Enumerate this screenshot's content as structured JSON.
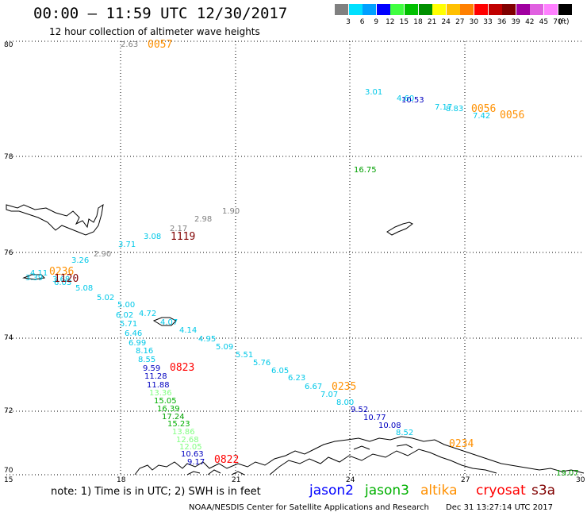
{
  "header": {
    "title": "00:00 – 11:59 UTC 12/30/2017",
    "subtitle": "12 hour collection of altimeter wave heights"
  },
  "legend": {
    "unit": "(ft)",
    "colors": [
      "#808080",
      "#00e0ff",
      "#00a0ff",
      "#0000ff",
      "#40ff40",
      "#00c000",
      "#009000",
      "#ffff00",
      "#ffc000",
      "#ff8000",
      "#ff0000",
      "#c00000",
      "#800000",
      "#a000a0",
      "#e060e0",
      "#ff80ff",
      "#000000"
    ],
    "labels": [
      "3",
      "6",
      "9",
      "12",
      "15",
      "18",
      "21",
      "24",
      "27",
      "30",
      "33",
      "36",
      "39",
      "42",
      "45",
      "70"
    ]
  },
  "axes": {
    "lat_labels": [
      "80",
      "78",
      "76",
      "74",
      "72",
      "70"
    ],
    "lon_labels": [
      "15",
      "18",
      "21",
      "24",
      "27",
      "30"
    ]
  },
  "wave_heights": [
    {
      "text": "2.63",
      "color": "#808080"
    },
    {
      "text": "3.01",
      "color": "#00c8e8"
    },
    {
      "text": "4.60",
      "color": "#00c8e8"
    },
    {
      "text": "10.53",
      "color": "#0000c0"
    },
    {
      "text": "7.17",
      "color": "#00c8e8"
    },
    {
      "text": "8.83",
      "color": "#00c8e8"
    },
    {
      "text": "7.42",
      "color": "#00c8e8"
    },
    {
      "text": "16.75",
      "color": "#00a000"
    },
    {
      "text": "1.90",
      "color": "#808080"
    },
    {
      "text": "2.98",
      "color": "#808080"
    },
    {
      "text": "2.17",
      "color": "#808080"
    },
    {
      "text": "3.08",
      "color": "#00c8e8"
    },
    {
      "text": "3.71",
      "color": "#00c8e8"
    },
    {
      "text": "2.90",
      "color": "#808080"
    },
    {
      "text": "3.26",
      "color": "#00c8e8"
    },
    {
      "text": "4.11",
      "color": "#00c8e8"
    },
    {
      "text": "3.39",
      "color": "#00c8e8"
    },
    {
      "text": "3.68",
      "color": "#00c8e8"
    },
    {
      "text": "6.03",
      "color": "#00c8e8"
    },
    {
      "text": "5.08",
      "color": "#00c8e8"
    },
    {
      "text": "5.02",
      "color": "#00c8e8"
    },
    {
      "text": "5.00",
      "color": "#00c8e8"
    },
    {
      "text": "6.02",
      "color": "#00c8e8"
    },
    {
      "text": "4.72",
      "color": "#00c8e8"
    },
    {
      "text": "5.71",
      "color": "#00c8e8"
    },
    {
      "text": "4.07",
      "color": "#00c8e8"
    },
    {
      "text": "6.46",
      "color": "#00c8e8"
    },
    {
      "text": "4.14",
      "color": "#00c8e8"
    },
    {
      "text": "6.99",
      "color": "#00c8e8"
    },
    {
      "text": "4.95",
      "color": "#00c8e8"
    },
    {
      "text": "8.16",
      "color": "#00c8e8"
    },
    {
      "text": "5.09",
      "color": "#00c8e8"
    },
    {
      "text": "8.55",
      "color": "#00c8e8"
    },
    {
      "text": "5.51",
      "color": "#00c8e8"
    },
    {
      "text": "9.59",
      "color": "#0000c0"
    },
    {
      "text": "5.76",
      "color": "#00c8e8"
    },
    {
      "text": "11.28",
      "color": "#0000c0"
    },
    {
      "text": "6.05",
      "color": "#00c8e8"
    },
    {
      "text": "11.88",
      "color": "#0000c0"
    },
    {
      "text": "6.23",
      "color": "#00c8e8"
    },
    {
      "text": "13.36",
      "color": "#80ff80"
    },
    {
      "text": "6.67",
      "color": "#00c8e8"
    },
    {
      "text": "15.05",
      "color": "#00b000"
    },
    {
      "text": "7.07",
      "color": "#00c8e8"
    },
    {
      "text": "16.39",
      "color": "#00b000"
    },
    {
      "text": "8.00",
      "color": "#00c8e8"
    },
    {
      "text": "17.24",
      "color": "#00a000"
    },
    {
      "text": "9.52",
      "color": "#0000c0"
    },
    {
      "text": "15.23",
      "color": "#00b000"
    },
    {
      "text": "10.77",
      "color": "#0000c0"
    },
    {
      "text": "13.86",
      "color": "#80ff80"
    },
    {
      "text": "10.08",
      "color": "#0000c0"
    },
    {
      "text": "12.68",
      "color": "#80ff80"
    },
    {
      "text": "8.52",
      "color": "#00c8e8"
    },
    {
      "text": "12.05",
      "color": "#80ff80"
    },
    {
      "text": "10.63",
      "color": "#0000c0"
    },
    {
      "text": "9.17",
      "color": "#0000c0"
    },
    {
      "text": "19.07",
      "color": "#00a000"
    }
  ],
  "pass_times": [
    {
      "text": "0057",
      "color": "#ff9000"
    },
    {
      "text": "0056",
      "color": "#ff9000"
    },
    {
      "text": "0056",
      "color": "#ff9000"
    },
    {
      "text": "1119",
      "color": "#800000"
    },
    {
      "text": "0236",
      "color": "#ff9000"
    },
    {
      "text": "1120",
      "color": "#800000"
    },
    {
      "text": "0823",
      "color": "#ff0000"
    },
    {
      "text": "0235",
      "color": "#ff9000"
    },
    {
      "text": "0234",
      "color": "#ff9000"
    },
    {
      "text": "0822",
      "color": "#ff0000"
    }
  ],
  "footer": {
    "note": "note: 1) Time is in UTC; 2) SWH is in feet",
    "satellites": [
      {
        "name": "jason2",
        "color": "#0000ff"
      },
      {
        "name": "jason3",
        "color": "#00b000"
      },
      {
        "name": "altika",
        "color": "#ff9000"
      },
      {
        "name": "cryosat",
        "color": "#ff0000"
      },
      {
        "name": "s3a",
        "color": "#800000"
      }
    ],
    "credit": "NOAA/NESDIS Center for Satellite Applications and Research",
    "timestamp": "Dec 31 13:27:14 UTC 2017"
  }
}
